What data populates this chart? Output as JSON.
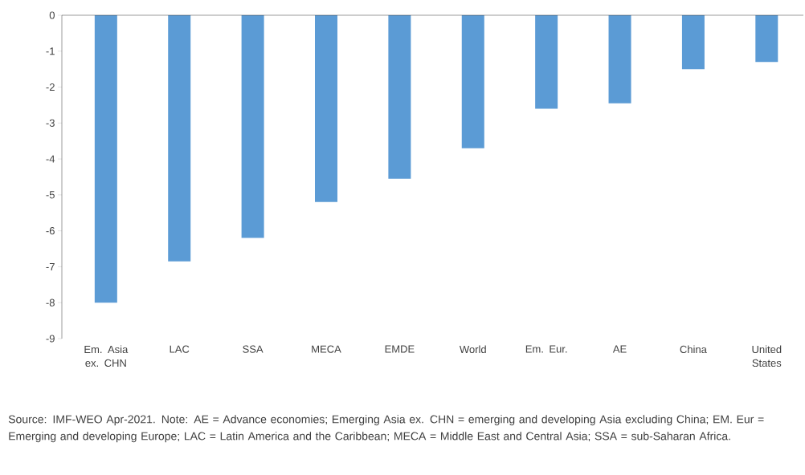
{
  "chart_data": {
    "type": "bar",
    "categories": [
      "Em. Asia ex. CHN",
      "LAC",
      "SSA",
      "MECA",
      "EMDE",
      "World",
      "Em. Eur.",
      "AE",
      "China",
      "United States"
    ],
    "values": [
      -8.0,
      -6.85,
      -6.2,
      -5.2,
      -4.55,
      -3.7,
      -2.6,
      -2.45,
      -1.5,
      -1.3
    ],
    "color": "#5b9bd5",
    "ylim": [
      -9,
      0
    ],
    "yticks": [
      -9,
      -8,
      -7,
      -6,
      -5,
      -4,
      -3,
      -2,
      -1,
      0
    ],
    "annotations": [
      "Source: IMF-WEO Apr-2021. Note: AE = Advance economies; Emerging Asia ex. CHN = emerging and developing Asia excluding China; EM. Eur = Emerging and developing Europe; LAC = Latin America and the Caribbean; MECA = Middle East and Central Asia; SSA = sub-Saharan Africa."
    ]
  }
}
